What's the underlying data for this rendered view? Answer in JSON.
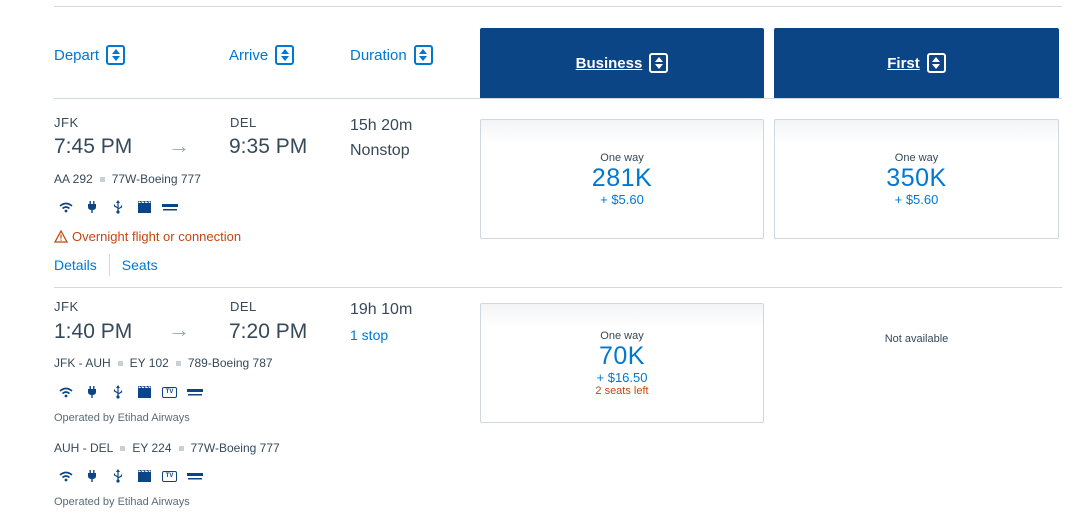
{
  "header": {
    "depart": "Depart",
    "arrive": "Arrive",
    "duration": "Duration",
    "business": "Business",
    "first": "First"
  },
  "flights": [
    {
      "origin": "JFK",
      "dest": "DEL",
      "depart_time": "7:45 PM",
      "arrive_time": "9:35 PM",
      "duration": "15h 20m",
      "stops": "Nonstop",
      "flight_no": "AA 292",
      "aircraft": "77W-Boeing 777",
      "warning": "Overnight flight or connection",
      "details_link": "Details",
      "seats_link": "Seats",
      "business": {
        "label": "One way",
        "miles": "281K",
        "tax": "+ $5.60"
      },
      "first": {
        "label": "One way",
        "miles": "350K",
        "tax": "+ $5.60"
      }
    },
    {
      "origin": "JFK",
      "dest": "DEL",
      "depart_time": "1:40 PM",
      "arrive_time": "7:20 PM",
      "duration": "19h 10m",
      "stops": "1 stop",
      "segments": [
        {
          "route": "JFK - AUH",
          "flight_no": "EY 102",
          "aircraft": "789-Boeing 787",
          "operated": "Operated by Etihad Airways"
        },
        {
          "route": "AUH - DEL",
          "flight_no": "EY 224",
          "aircraft": "77W-Boeing 777",
          "operated": "Operated by Etihad Airways"
        }
      ],
      "business": {
        "label": "One way",
        "miles": "70K",
        "tax": "+ $16.50",
        "seats_left": "2 seats left"
      },
      "first": {
        "not_available": "Not available"
      }
    }
  ],
  "icons": [
    "wifi-icon",
    "power-icon",
    "usb-icon",
    "entertainment-icon",
    "tv-icon",
    "lie-flat-seat-icon",
    "warning-icon",
    "arrow-right-icon",
    "sort-icon"
  ],
  "colors": {
    "link": "#0078d2",
    "header_bg": "#0b4585",
    "warning": "#c2470f",
    "text": "#36495a"
  }
}
